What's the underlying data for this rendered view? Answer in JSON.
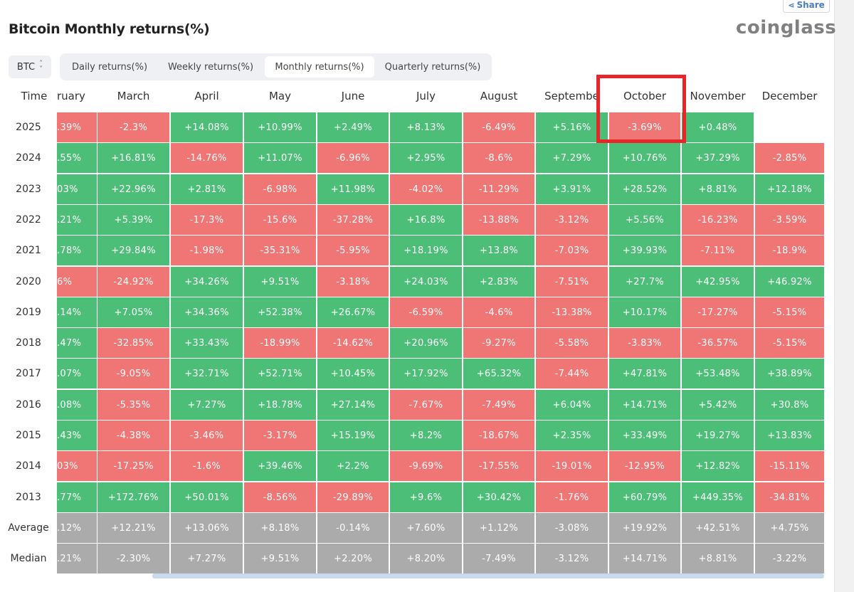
{
  "share_label": "Share",
  "title": "Bitcoin Monthly returns(%)",
  "logo": "coinglass",
  "coin_select": "BTC",
  "tabs": [
    {
      "label": "Daily returns(%)",
      "active": false
    },
    {
      "label": "Weekly returns(%)",
      "active": false
    },
    {
      "label": "Monthly returns(%)",
      "active": true
    },
    {
      "label": "Quarterly returns(%)",
      "active": false
    }
  ],
  "time_label": "Time",
  "columns": [
    "ruary",
    "March",
    "April",
    "May",
    "June",
    "July",
    "August",
    "Septembe",
    "October",
    "November",
    "December"
  ],
  "highlight_column": "October",
  "colors": {
    "positive": "#4cbe78",
    "negative": "#f07575",
    "neutral": "#ababab",
    "highlight": "#e8262a"
  },
  "rows": [
    {
      "label": "2025",
      "cells": [
        ".39%",
        "-2.3%",
        "+14.08%",
        "+10.99%",
        "+2.49%",
        "+8.13%",
        "-6.49%",
        "+5.16%",
        "-3.69%",
        "+0.48%",
        ""
      ],
      "signs": [
        "neg",
        "neg",
        "pos",
        "pos",
        "pos",
        "pos",
        "neg",
        "pos",
        "neg",
        "pos",
        "none"
      ]
    },
    {
      "label": "2024",
      "cells": [
        ".55%",
        "+16.81%",
        "-14.76%",
        "+11.07%",
        "-6.96%",
        "+2.95%",
        "-8.6%",
        "+7.29%",
        "+10.76%",
        "+37.29%",
        "-2.85%"
      ],
      "signs": [
        "pos",
        "pos",
        "neg",
        "pos",
        "neg",
        "pos",
        "neg",
        "pos",
        "pos",
        "pos",
        "neg"
      ]
    },
    {
      "label": "2023",
      "cells": [
        "03%",
        "+22.96%",
        "+2.81%",
        "-6.98%",
        "+11.98%",
        "-4.02%",
        "-11.29%",
        "+3.91%",
        "+28.52%",
        "+8.81%",
        "+12.18%"
      ],
      "signs": [
        "pos",
        "pos",
        "pos",
        "neg",
        "pos",
        "neg",
        "neg",
        "pos",
        "pos",
        "pos",
        "pos"
      ]
    },
    {
      "label": "2022",
      "cells": [
        ".21%",
        "+5.39%",
        "-17.3%",
        "-15.6%",
        "-37.28%",
        "+16.8%",
        "-13.88%",
        "-3.12%",
        "+5.56%",
        "-16.23%",
        "-3.59%"
      ],
      "signs": [
        "pos",
        "pos",
        "neg",
        "neg",
        "neg",
        "pos",
        "neg",
        "neg",
        "pos",
        "neg",
        "neg"
      ]
    },
    {
      "label": "2021",
      "cells": [
        ".78%",
        "+29.84%",
        "-1.98%",
        "-35.31%",
        "-5.95%",
        "+18.19%",
        "+13.8%",
        "-7.03%",
        "+39.93%",
        "-7.11%",
        "-18.9%"
      ],
      "signs": [
        "pos",
        "pos",
        "neg",
        "neg",
        "neg",
        "pos",
        "pos",
        "neg",
        "pos",
        "neg",
        "neg"
      ]
    },
    {
      "label": "2020",
      "cells": [
        "6%",
        "-24.92%",
        "+34.26%",
        "+9.51%",
        "-3.18%",
        "+24.03%",
        "+2.83%",
        "-7.51%",
        "+27.7%",
        "+42.95%",
        "+46.92%"
      ],
      "signs": [
        "neg",
        "neg",
        "pos",
        "pos",
        "neg",
        "pos",
        "pos",
        "neg",
        "pos",
        "pos",
        "pos"
      ]
    },
    {
      "label": "2019",
      "cells": [
        ".14%",
        "+7.05%",
        "+34.36%",
        "+52.38%",
        "+26.67%",
        "-6.59%",
        "-4.6%",
        "-13.38%",
        "+10.17%",
        "-17.27%",
        "-5.15%"
      ],
      "signs": [
        "pos",
        "pos",
        "pos",
        "pos",
        "pos",
        "neg",
        "neg",
        "neg",
        "pos",
        "neg",
        "neg"
      ]
    },
    {
      "label": "2018",
      "cells": [
        ".47%",
        "-32.85%",
        "+33.43%",
        "-18.99%",
        "-14.62%",
        "+20.96%",
        "-9.27%",
        "-5.58%",
        "-3.83%",
        "-36.57%",
        "-5.15%"
      ],
      "signs": [
        "pos",
        "neg",
        "pos",
        "neg",
        "neg",
        "pos",
        "neg",
        "neg",
        "neg",
        "neg",
        "neg"
      ]
    },
    {
      "label": "2017",
      "cells": [
        ".07%",
        "-9.05%",
        "+32.71%",
        "+52.71%",
        "+10.45%",
        "+17.92%",
        "+65.32%",
        "-7.44%",
        "+47.81%",
        "+53.48%",
        "+38.89%"
      ],
      "signs": [
        "pos",
        "neg",
        "pos",
        "pos",
        "pos",
        "pos",
        "pos",
        "neg",
        "pos",
        "pos",
        "pos"
      ]
    },
    {
      "label": "2016",
      "cells": [
        ".08%",
        "-5.35%",
        "+7.27%",
        "+18.78%",
        "+27.14%",
        "-7.67%",
        "-7.49%",
        "+6.04%",
        "+14.71%",
        "+5.42%",
        "+30.8%"
      ],
      "signs": [
        "pos",
        "neg",
        "pos",
        "pos",
        "pos",
        "neg",
        "neg",
        "pos",
        "pos",
        "pos",
        "pos"
      ]
    },
    {
      "label": "2015",
      "cells": [
        ".43%",
        "-4.38%",
        "-3.46%",
        "-3.17%",
        "+15.19%",
        "+8.2%",
        "-18.67%",
        "+2.35%",
        "+33.49%",
        "+19.27%",
        "+13.83%"
      ],
      "signs": [
        "pos",
        "neg",
        "neg",
        "neg",
        "pos",
        "pos",
        "neg",
        "pos",
        "pos",
        "pos",
        "pos"
      ]
    },
    {
      "label": "2014",
      "cells": [
        "03%",
        "-17.25%",
        "-1.6%",
        "+39.46%",
        "+2.2%",
        "-9.69%",
        "-17.55%",
        "-19.01%",
        "-12.95%",
        "+12.82%",
        "-15.11%"
      ],
      "signs": [
        "neg",
        "neg",
        "neg",
        "pos",
        "pos",
        "neg",
        "neg",
        "neg",
        "neg",
        "pos",
        "neg"
      ]
    },
    {
      "label": "2013",
      "cells": [
        ".77%",
        "+172.76%",
        "+50.01%",
        "-8.56%",
        "-29.89%",
        "+9.6%",
        "+30.42%",
        "-1.76%",
        "+60.79%",
        "+449.35%",
        "-34.81%"
      ],
      "signs": [
        "pos",
        "pos",
        "pos",
        "neg",
        "neg",
        "pos",
        "pos",
        "neg",
        "pos",
        "pos",
        "neg"
      ]
    },
    {
      "label": "Average",
      "cells": [
        ".12%",
        "+12.21%",
        "+13.06%",
        "+8.18%",
        "-0.14%",
        "+7.60%",
        "+1.12%",
        "-3.08%",
        "+19.92%",
        "+42.51%",
        "+4.75%"
      ],
      "signs": [
        "neu",
        "neu",
        "neu",
        "neu",
        "neu",
        "neu",
        "neu",
        "neu",
        "neu",
        "neu",
        "neu"
      ]
    },
    {
      "label": "Median",
      "cells": [
        ".21%",
        "-2.30%",
        "+7.27%",
        "+9.51%",
        "+2.20%",
        "+8.20%",
        "-7.49%",
        "-3.12%",
        "+14.71%",
        "+8.81%",
        "-3.22%"
      ],
      "signs": [
        "neu",
        "neu",
        "neu",
        "neu",
        "neu",
        "neu",
        "neu",
        "neu",
        "neu",
        "neu",
        "neu"
      ]
    }
  ]
}
